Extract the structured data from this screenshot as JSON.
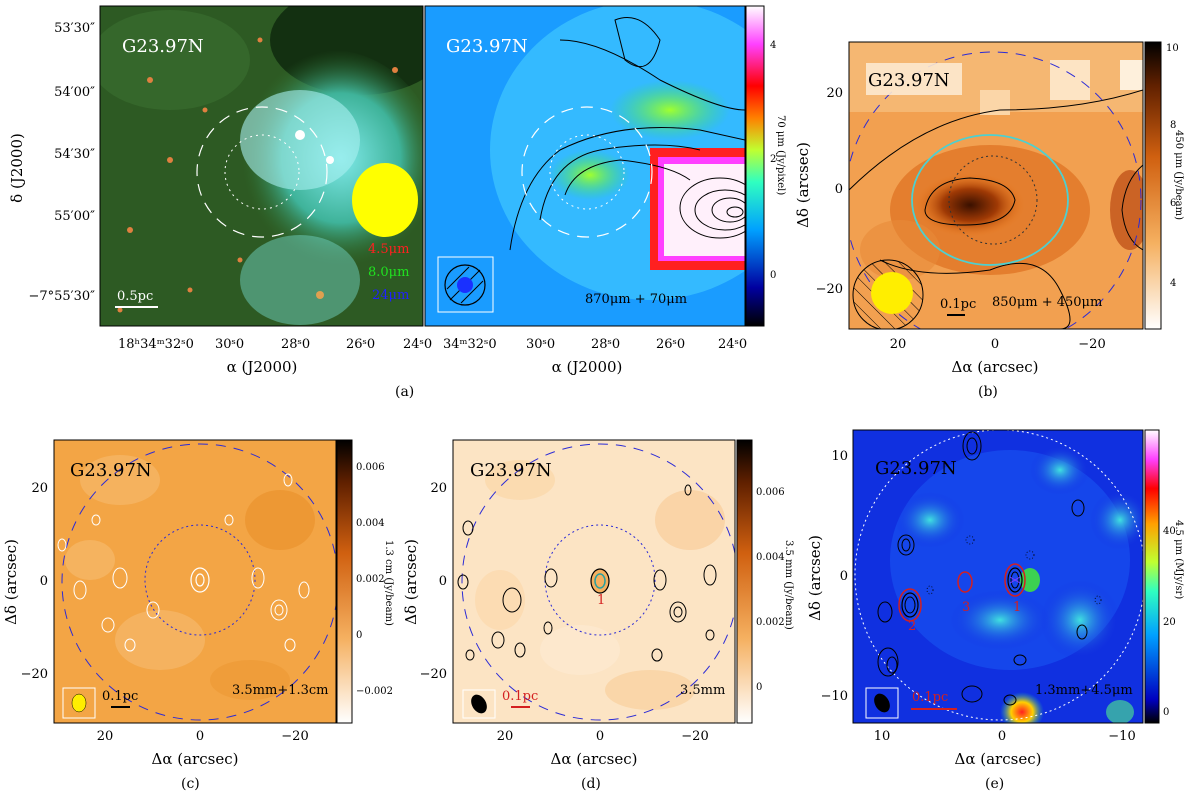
{
  "panel_a": {
    "title_left": "G23.97N",
    "title_right": "G23.97N",
    "band_red": "4.5μm",
    "band_green": "8.0μm",
    "band_blue": "24μm",
    "scale_bar": "0.5pc",
    "overlay": "870μm + 70μm",
    "ylabel": "δ (J2000)",
    "xlabel": "α (J2000)",
    "yticks": [
      "53′30″",
      "54′00″",
      "54′30″",
      "55′00″",
      "−7°55′30″"
    ],
    "xticks_left": [
      "18ʰ34ᵐ32ˢ0",
      "30ˢ0",
      "28ˢ0",
      "26ˢ0",
      "24ˢ0"
    ],
    "xticks_right": [
      "34ᵐ32ˢ0",
      "30ˢ0",
      "28ˢ0",
      "26ˢ0",
      "24ˢ0"
    ],
    "cbar_label": "70 μm (Jy/pixel)",
    "cbar_ticks": [
      "4",
      "2",
      "0"
    ],
    "caption": "(a)"
  },
  "panel_b": {
    "title": "G23.97N",
    "overlay": "850μm + 450μm",
    "scale_bar": "0.1pc",
    "ylabel": "Δδ (arcsec)",
    "xlabel": "Δα (arcsec)",
    "yticks": [
      "20",
      "0",
      "−20"
    ],
    "xticks": [
      "20",
      "0",
      "−20"
    ],
    "cbar_label": "450 μm (Jy/beam)",
    "cbar_ticks": [
      "10",
      "8",
      "6",
      "4"
    ],
    "caption": "(b)"
  },
  "panel_c": {
    "title": "G23.97N",
    "overlay": "3.5mm+1.3cm",
    "scale_bar": "0.1pc",
    "ylabel": "Δδ (arcsec)",
    "xlabel": "Δα (arcsec)",
    "yticks": [
      "20",
      "0",
      "−20"
    ],
    "xticks": [
      "20",
      "0",
      "−20"
    ],
    "cbar_label": "1.3 cm (Jy/beam)",
    "cbar_ticks": [
      "0.006",
      "0.004",
      "0.002",
      "0",
      "−0.002"
    ],
    "caption": "(c)"
  },
  "panel_d": {
    "title": "G23.97N",
    "overlay": "3.5mm",
    "scale_bar": "0.1pc",
    "source_label": "1",
    "ylabel": "Δδ (arcsec)",
    "xlabel": "Δα (arcsec)",
    "yticks": [
      "20",
      "0",
      "−20"
    ],
    "xticks": [
      "20",
      "0",
      "−20"
    ],
    "cbar_label": "3.5 mm (Jy/beam)",
    "cbar_ticks": [
      "0.006",
      "0.004",
      "0.002",
      "0"
    ],
    "caption": "(d)"
  },
  "panel_e": {
    "title": "G23.97N",
    "overlay": "1.3mm+4.5μm",
    "scale_bar": "0.1pc",
    "sources": [
      "1",
      "2",
      "3"
    ],
    "ylabel": "Δδ (arcsec)",
    "xlabel": "Δα (arcsec)",
    "yticks": [
      "10",
      "0",
      "−10"
    ],
    "xticks": [
      "10",
      "0",
      "−10"
    ],
    "cbar_label": "4.5 μm (MJy/sr)",
    "cbar_ticks": [
      "40",
      "20",
      "0"
    ],
    "caption": "(e)"
  },
  "colors": {
    "title_white": "#ffffff",
    "band_red": "#ff2020",
    "band_green": "#20e020",
    "band_blue": "#2020ff",
    "dashed_circle_blue": "#2b2bd6",
    "source_red": "#d42020"
  }
}
